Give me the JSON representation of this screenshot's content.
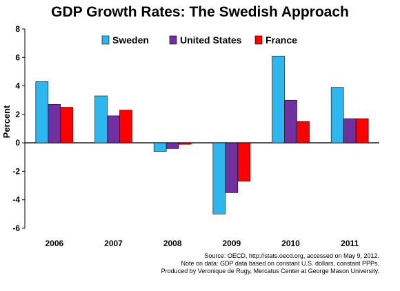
{
  "chart_data": {
    "type": "bar",
    "title": "GDP Growth Rates: The Swedish Approach",
    "ylabel": "Percent",
    "xlabel": "",
    "categories": [
      "2006",
      "2007",
      "2008",
      "2009",
      "2010",
      "2011"
    ],
    "series": [
      {
        "name": "Sweden",
        "color": "#2DB7EF",
        "values": [
          4.3,
          3.3,
          -0.6,
          -5.0,
          6.1,
          3.9
        ]
      },
      {
        "name": "United States",
        "color": "#7030A0",
        "values": [
          2.7,
          1.9,
          -0.4,
          -3.5,
          3.0,
          1.7
        ]
      },
      {
        "name": "France",
        "color": "#FF0000",
        "values": [
          2.5,
          2.3,
          -0.1,
          -2.7,
          1.5,
          1.7
        ]
      }
    ],
    "ylim": [
      -6,
      8
    ],
    "yticks": [
      -6,
      -4,
      -2,
      0,
      2,
      4,
      6,
      8
    ],
    "grid": false,
    "legend": "top"
  },
  "notes": {
    "source": "Source: OECD, http://stats.oecd.org, accessed on May 9, 2012.",
    "data_note": "Note on data: GDP data based on constant U.S. dollars, constant PPPs.",
    "credit": "Produced by Veronique de Rugy, Mercatus Center at George Mason University."
  }
}
